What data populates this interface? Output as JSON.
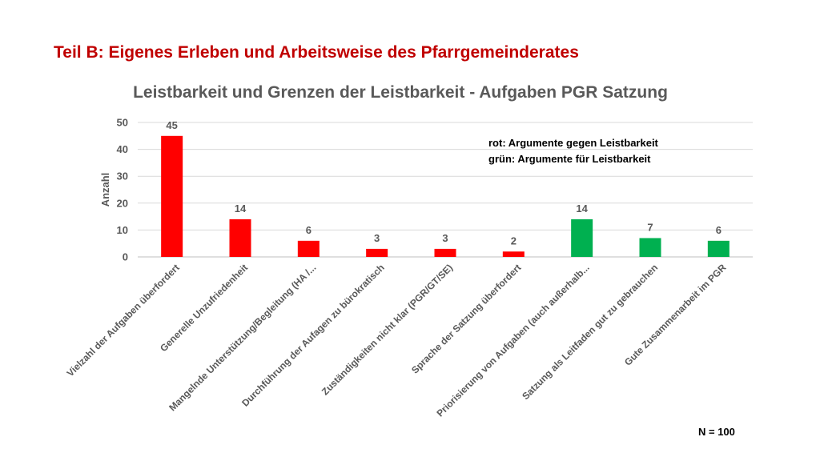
{
  "heading": "Teil B: Eigenes Erleben und Arbeitsweise des Pfarrgemeinderates",
  "sample_size": "N = 100",
  "legend_note": {
    "line1": "rot: Argumente gegen Leistbarkeit",
    "line2": "grün:  Argumente für Leistbarkeit"
  },
  "colors": {
    "negative": "#ff0000",
    "positive": "#00b050",
    "heading": "#c00000",
    "title": "#595959",
    "gridline": "#d9d9d9"
  },
  "chart_data": {
    "type": "bar",
    "title": "Leistbarkeit und Grenzen der Leistbarkeit - Aufgaben PGR Satzung",
    "xlabel": "",
    "ylabel": "Anzahl",
    "ylim": [
      0,
      50
    ],
    "yticks": [
      0,
      10,
      20,
      30,
      40,
      50
    ],
    "grid": true,
    "categories": [
      "Vielzahl der Aufgaben überfordert",
      "Generelle Unzufriedenheit",
      "Mangelnde Unterstützung/Begleitung (HA /...",
      "Durchführung der Aufagen zu bürokratisch",
      "Zuständigkeiten nicht klar (PGR/GT/SE)",
      "Sprache der Satzung überfordert",
      "Priorisierung von Aufgaben (auch außerhalb...",
      "Satzung als Leitfaden gut zu gebrauchen",
      "Gute Zusammenarbeit im PGR"
    ],
    "values": [
      45,
      14,
      6,
      3,
      3,
      2,
      14,
      7,
      6
    ],
    "bar_groups": [
      "negative",
      "negative",
      "negative",
      "negative",
      "negative",
      "negative",
      "positive",
      "positive",
      "positive"
    ],
    "data_labels": [
      "45",
      "14",
      "6",
      "3",
      "3",
      "2",
      "14",
      "7",
      "6"
    ]
  }
}
